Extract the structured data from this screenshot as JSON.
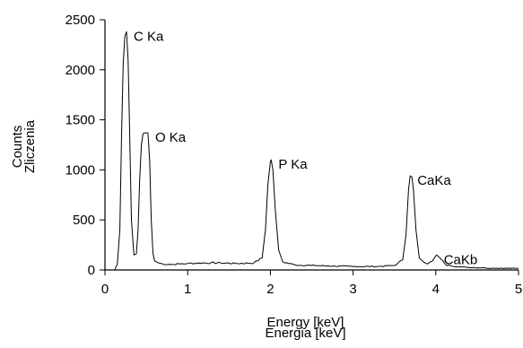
{
  "chart_data": {
    "type": "line",
    "title": "",
    "xlabel_lines": [
      "Energy [keV]",
      "Energia [keV]"
    ],
    "ylabel_lines": [
      "Counts",
      "Zliczenia"
    ],
    "xlim": [
      0,
      5
    ],
    "ylim": [
      0,
      2500
    ],
    "xticks": [
      0,
      1,
      2,
      3,
      4,
      5
    ],
    "yticks": [
      0,
      500,
      1000,
      1500,
      2000,
      2500
    ],
    "grid": false,
    "baseline": 50,
    "peaks": [
      {
        "label": "C Ka",
        "x": 0.26,
        "y": 2380
      },
      {
        "label": "O Ka",
        "x": 0.52,
        "y": 1370
      },
      {
        "label": "P Ka",
        "x": 2.01,
        "y": 1100
      },
      {
        "label": "CaKa",
        "x": 3.69,
        "y": 940
      },
      {
        "label": "CaKb",
        "x": 4.01,
        "y": 150
      }
    ],
    "series": [
      {
        "x": [
          0.12,
          0.15,
          0.18,
          0.2,
          0.22,
          0.24,
          0.26,
          0.28,
          0.3,
          0.32,
          0.35,
          0.38,
          0.4,
          0.42,
          0.44,
          0.46,
          0.48,
          0.5,
          0.52,
          0.54,
          0.56,
          0.58,
          0.6,
          0.65,
          0.7,
          0.8,
          0.9,
          1.0,
          1.2,
          1.4,
          1.6,
          1.8,
          1.9,
          1.94,
          1.97,
          2.0,
          2.01,
          2.03,
          2.06,
          2.1,
          2.15,
          2.3,
          2.5,
          2.7,
          3.0,
          3.3,
          3.5,
          3.6,
          3.64,
          3.67,
          3.69,
          3.71,
          3.73,
          3.76,
          3.8,
          3.9,
          3.96,
          4.01,
          4.06,
          4.12,
          4.3,
          4.6,
          5.0
        ],
        "y": [
          5,
          60,
          400,
          1300,
          2050,
          2330,
          2380,
          2100,
          1300,
          500,
          150,
          160,
          400,
          900,
          1250,
          1360,
          1370,
          1370,
          1370,
          1100,
          500,
          170,
          90,
          70,
          60,
          55,
          60,
          65,
          70,
          70,
          65,
          70,
          120,
          400,
          850,
          1080,
          1100,
          1000,
          600,
          200,
          80,
          50,
          45,
          40,
          35,
          35,
          45,
          100,
          350,
          800,
          940,
          930,
          800,
          400,
          120,
          60,
          90,
          150,
          110,
          50,
          30,
          20,
          15
        ]
      }
    ]
  }
}
